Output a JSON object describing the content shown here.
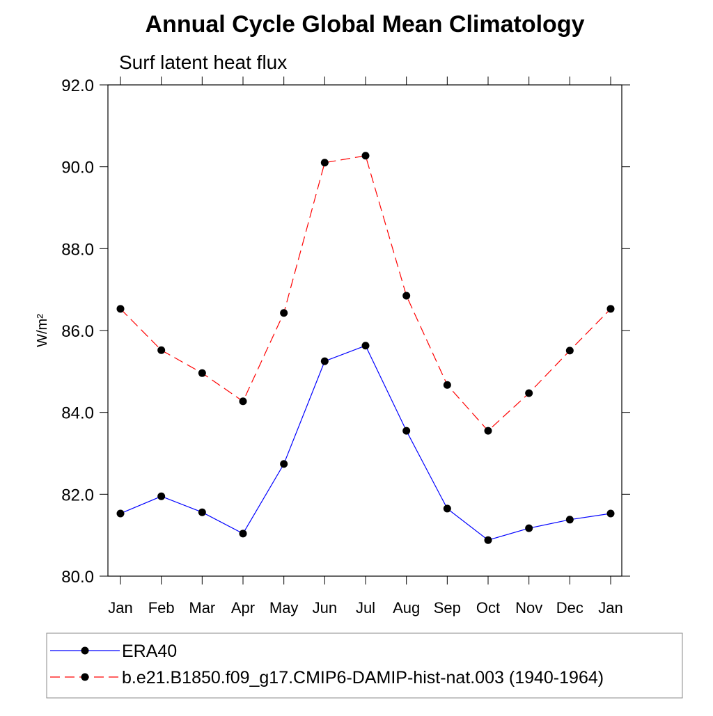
{
  "chart_data": {
    "type": "line",
    "title": "Annual Cycle Global Mean Climatology",
    "subtitle": "Surf latent heat flux",
    "y_label": "W/m²",
    "categories": [
      "Jan",
      "Feb",
      "Mar",
      "Apr",
      "May",
      "Jun",
      "Jul",
      "Aug",
      "Sep",
      "Oct",
      "Nov",
      "Dec",
      "Jan"
    ],
    "series": [
      {
        "name": "ERA40",
        "color": "#0000ff",
        "dash": "solid",
        "values": [
          81.53,
          81.95,
          81.56,
          81.04,
          82.74,
          85.25,
          85.63,
          83.55,
          81.65,
          80.88,
          81.17,
          81.38,
          81.53
        ]
      },
      {
        "name": "b.e21.B1850.f09_g17.CMIP6-DAMIP-hist-nat.003 (1940-1964)",
        "color": "#ff0000",
        "dash": "dashed",
        "values": [
          86.53,
          85.52,
          84.96,
          84.27,
          86.43,
          90.1,
          90.27,
          86.85,
          84.67,
          83.55,
          84.47,
          85.51,
          86.53
        ]
      }
    ],
    "ylim": [
      80,
      92
    ],
    "yticks": [
      {
        "value": 80,
        "label": "80.0"
      },
      {
        "value": 82,
        "label": "82.0"
      },
      {
        "value": 84,
        "label": "84.0"
      },
      {
        "value": 86,
        "label": "86.0"
      },
      {
        "value": 88,
        "label": "88.0"
      },
      {
        "value": 90,
        "label": "90.0"
      },
      {
        "value": 92,
        "label": "92.0"
      }
    ],
    "grid": false,
    "legend": "bottom"
  }
}
